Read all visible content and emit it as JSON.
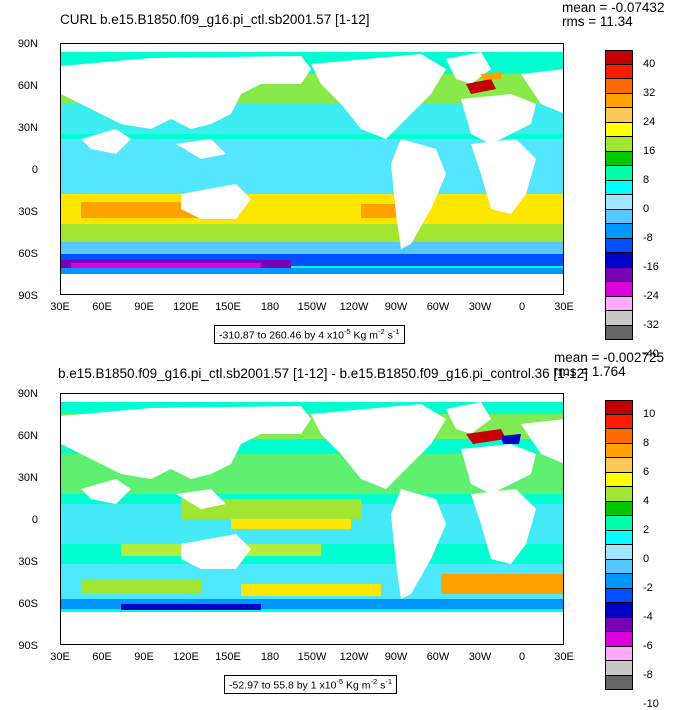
{
  "panels": [
    {
      "title": "CURL b.e15.B1850.f09_g16.pi_ctl.sb2001.57 [1-12]",
      "mean": "mean = -0.07432",
      "rms": "rms = 11.34",
      "range": {
        "text": "-310.87 to 260.46 by 4 x10",
        "exp": "-5",
        "unit": " Kg m",
        "unit_exp": "-2",
        "unit_tail": " s",
        "tail_exp": "-1"
      },
      "colorbar_labels": [
        "40",
        "32",
        "24",
        "16",
        "8",
        "0",
        "-8",
        "-16",
        "-24",
        "-32",
        "-40"
      ],
      "colors": [
        "#c40000",
        "#ff1a00",
        "#ff6a00",
        "#ffa200",
        "#ffc85a",
        "#ffff00",
        "#a0e632",
        "#00c800",
        "#00ffaa",
        "#00ffff",
        "#a0e6ff",
        "#55c8ff",
        "#0096ff",
        "#0050ff",
        "#0000c8",
        "#7800b4",
        "#dc00dc",
        "#ffaaff",
        "#c8c8c8",
        "#666666"
      ]
    },
    {
      "title": "b.e15.B1850.f09_g16.pi_ctl.sb2001.57 [1-12] - b.e15.B1850.f09_g16.pi_control.36 [1-12]",
      "mean": "mean = -0.002725",
      "rms": "rms = 1.764",
      "range": {
        "text": "-52.97 to 55.8 by 1 x10",
        "exp": "-5",
        "unit": " Kg m",
        "unit_exp": "-2",
        "unit_tail": " s",
        "tail_exp": "-1"
      },
      "colorbar_labels": [
        "10",
        "8",
        "6",
        "4",
        "2",
        "0",
        "-2",
        "-4",
        "-6",
        "-8",
        "-10"
      ],
      "colors": [
        "#c40000",
        "#ff1a00",
        "#ff6a00",
        "#ffa200",
        "#ffc85a",
        "#ffff00",
        "#a0e632",
        "#00c800",
        "#00ffaa",
        "#00ffff",
        "#a0e6ff",
        "#55c8ff",
        "#0096ff",
        "#0050ff",
        "#0000c8",
        "#7800b4",
        "#dc00dc",
        "#ffaaff",
        "#c8c8c8",
        "#666666"
      ]
    }
  ],
  "lat_labels": [
    "90N",
    "60N",
    "30N",
    "0",
    "30S",
    "60S",
    "90S"
  ],
  "lon_labels": [
    "30E",
    "60E",
    "90E",
    "120E",
    "150E",
    "180",
    "150W",
    "120W",
    "90W",
    "60W",
    "30W",
    "0",
    "30E"
  ],
  "map_colors": {
    "ocean_base": "#00ffd0",
    "ocean_cyan": "#55e6ff",
    "band_yellow": "#ffe600",
    "band_orange": "#ffa200",
    "band_green": "#a0e632",
    "band_blue": "#0096ff",
    "band_deep_blue": "#0000c8",
    "band_purple": "#7800b4",
    "band_magenta": "#dc00dc",
    "band_red": "#c40000",
    "land": "#ffffff"
  }
}
